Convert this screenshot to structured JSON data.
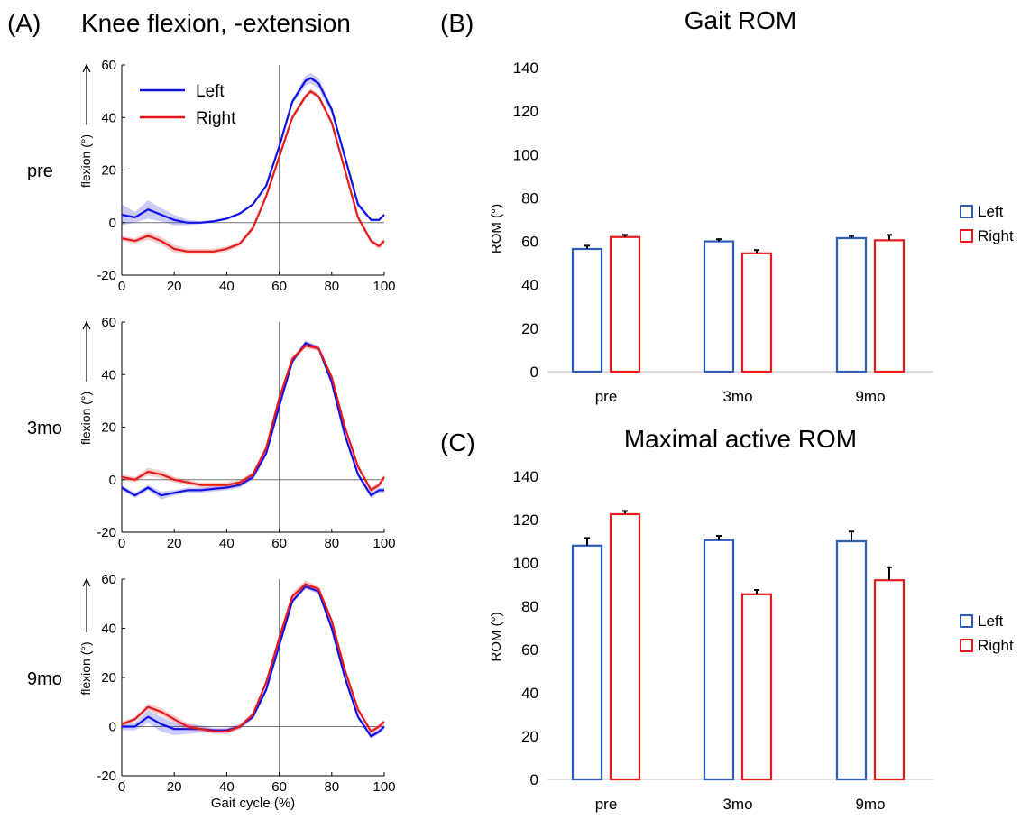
{
  "figure": {
    "panel_a_letter": "(A)",
    "panel_a_title": "Knee flexion, -extension",
    "panel_b_letter": "(B)",
    "panel_c_letter": "(C)"
  },
  "colors": {
    "left": "#1010e6",
    "right": "#e61a1a",
    "left_bar": "#2e5cb8",
    "right_bar": "#e61a1a"
  },
  "chart_data": [
    {
      "type": "line",
      "panel": "A",
      "row_label": "pre",
      "xlabel": "",
      "ylabel": "flexion (°)",
      "xlim": [
        0,
        100
      ],
      "ylim": [
        -20,
        60
      ],
      "xticks": [
        0,
        20,
        40,
        60,
        80,
        100
      ],
      "yticks": [
        -20,
        0,
        20,
        40,
        60
      ],
      "legend": {
        "position": "top-left",
        "entries": [
          "Left",
          "Right"
        ]
      },
      "x": [
        0,
        5,
        10,
        15,
        20,
        25,
        30,
        35,
        40,
        45,
        50,
        55,
        60,
        65,
        70,
        72,
        75,
        80,
        85,
        90,
        95,
        98,
        100
      ],
      "series": [
        {
          "name": "Left",
          "values": [
            3,
            2,
            5,
            3,
            1,
            0,
            0,
            0.5,
            1.5,
            3.5,
            7,
            14,
            29,
            46,
            54,
            55,
            53,
            43,
            25,
            7,
            1,
            1,
            3
          ],
          "band": [
            4,
            2,
            3.5,
            2.5,
            2,
            1,
            0.5,
            0.5,
            0.5,
            0.5,
            0.5,
            0.5,
            0.5,
            1,
            2,
            2,
            2,
            1.5,
            1,
            1,
            0.5,
            0.5,
            0.5
          ]
        },
        {
          "name": "Right",
          "values": [
            -6,
            -7,
            -5,
            -7,
            -10,
            -11,
            -11,
            -11,
            -10,
            -8,
            -2,
            10,
            25,
            40,
            48,
            50,
            48,
            38,
            20,
            2,
            -7,
            -9,
            -7
          ],
          "band": [
            1,
            1,
            1.5,
            1.5,
            1.5,
            1,
            1,
            1,
            1,
            1,
            1,
            1,
            1,
            1,
            1,
            1,
            1,
            1,
            1,
            1,
            1,
            1,
            1
          ]
        }
      ]
    },
    {
      "type": "line",
      "panel": "A",
      "row_label": "3mo",
      "xlabel": "",
      "ylabel": "flexion (°)",
      "xlim": [
        0,
        100
      ],
      "ylim": [
        -20,
        60
      ],
      "xticks": [
        0,
        20,
        40,
        60,
        80,
        100
      ],
      "yticks": [
        -20,
        0,
        20,
        40,
        60
      ],
      "x": [
        0,
        5,
        10,
        15,
        20,
        25,
        30,
        35,
        40,
        45,
        50,
        55,
        60,
        65,
        70,
        75,
        80,
        85,
        90,
        95,
        98,
        100
      ],
      "series": [
        {
          "name": "Left",
          "values": [
            -3,
            -6,
            -3,
            -6,
            -5,
            -4,
            -4,
            -3.5,
            -3,
            -2,
            1,
            10,
            28,
            45,
            52,
            50,
            37,
            17,
            2,
            -6,
            -4,
            -4
          ],
          "band": [
            1,
            1,
            1,
            1.5,
            1,
            1,
            1,
            1,
            1,
            1,
            1,
            1,
            1,
            1,
            1,
            1,
            1,
            1,
            1,
            1,
            1,
            1
          ]
        },
        {
          "name": "Right",
          "values": [
            1,
            0,
            3,
            2,
            0,
            -1,
            -2,
            -2,
            -2,
            -1,
            2,
            12,
            31,
            46,
            51,
            50,
            39,
            20,
            5,
            -4,
            -2,
            1
          ],
          "band": [
            1,
            1,
            1.5,
            1.5,
            1,
            1,
            1,
            1,
            1,
            1,
            1,
            1,
            1,
            1,
            1,
            1,
            1,
            1,
            1,
            1,
            1,
            1
          ]
        }
      ]
    },
    {
      "type": "line",
      "panel": "A",
      "row_label": "9mo",
      "xlabel": "Gait cycle (%)",
      "ylabel": "flexion (°)",
      "xlim": [
        0,
        100
      ],
      "ylim": [
        -20,
        60
      ],
      "xticks": [
        0,
        20,
        40,
        60,
        80,
        100
      ],
      "yticks": [
        -20,
        0,
        20,
        40,
        60
      ],
      "x": [
        0,
        5,
        10,
        15,
        20,
        25,
        30,
        35,
        40,
        45,
        50,
        55,
        60,
        65,
        70,
        75,
        80,
        85,
        90,
        95,
        98,
        100
      ],
      "series": [
        {
          "name": "Left",
          "values": [
            0,
            0,
            4,
            1,
            -1,
            -1,
            -1,
            -1.5,
            -1.5,
            0,
            4,
            15,
            33,
            51,
            57,
            55,
            40,
            20,
            4,
            -4,
            -2,
            0
          ],
          "band": [
            1.5,
            1.5,
            2.5,
            3,
            2.5,
            2,
            1.5,
            1,
            1,
            1,
            1,
            1,
            1,
            1,
            1,
            1,
            1,
            1,
            1,
            1,
            1,
            1
          ]
        },
        {
          "name": "Right",
          "values": [
            1,
            3,
            8,
            6,
            3,
            0,
            -1,
            -2,
            -2,
            0,
            5,
            18,
            36,
            53,
            58,
            56,
            43,
            23,
            7,
            -2,
            0,
            2
          ],
          "band": [
            1,
            1,
            1.5,
            1.5,
            1.5,
            1.5,
            1,
            1,
            1,
            1,
            1,
            1,
            1.5,
            1.5,
            1.5,
            1,
            1,
            1,
            1,
            1,
            1,
            1
          ]
        }
      ]
    },
    {
      "type": "bar",
      "panel": "B",
      "title": "Gait ROM",
      "ylabel": "ROM (°)",
      "ylim": [
        0,
        140
      ],
      "yticks": [
        0,
        20,
        40,
        60,
        80,
        100,
        120,
        140
      ],
      "categories": [
        "pre",
        "3mo",
        "9mo"
      ],
      "legend": {
        "position": "right",
        "entries": [
          "Left",
          "Right"
        ]
      },
      "series": [
        {
          "name": "Left",
          "values": [
            56.5,
            60,
            61.5
          ],
          "errors": [
            1.5,
            1,
            1
          ]
        },
        {
          "name": "Right",
          "values": [
            62,
            54.5,
            60.5
          ],
          "errors": [
            1,
            1.5,
            2.5
          ]
        }
      ]
    },
    {
      "type": "bar",
      "panel": "C",
      "title": "Maximal active ROM",
      "ylabel": "ROM (°)",
      "ylim": [
        0,
        140
      ],
      "yticks": [
        0,
        20,
        40,
        60,
        80,
        100,
        120,
        140
      ],
      "categories": [
        "pre",
        "3mo",
        "9mo"
      ],
      "legend": {
        "position": "right",
        "entries": [
          "Left",
          "Right"
        ]
      },
      "series": [
        {
          "name": "Left",
          "values": [
            108,
            110.5,
            110
          ],
          "errors": [
            3.5,
            2,
            4.5
          ]
        },
        {
          "name": "Right",
          "values": [
            122.5,
            85.5,
            92
          ],
          "errors": [
            1.5,
            2,
            6
          ]
        }
      ]
    }
  ]
}
